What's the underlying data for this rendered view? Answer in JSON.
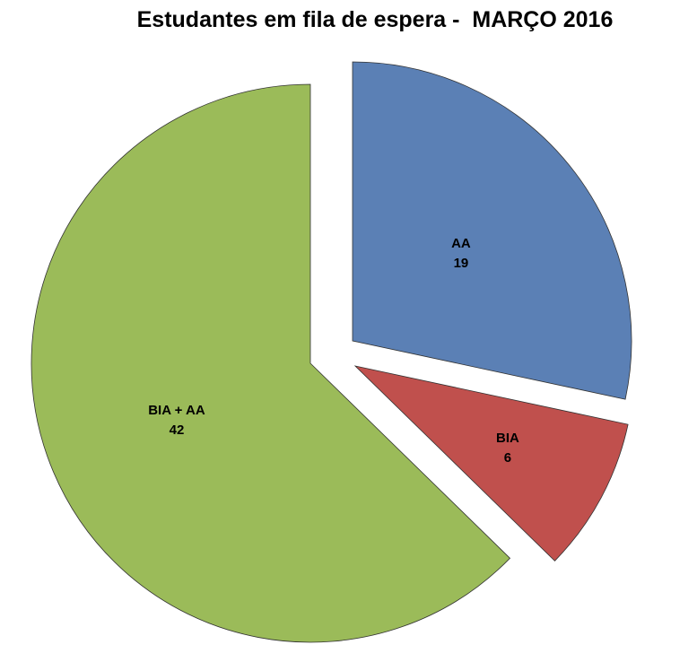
{
  "chart_data": {
    "type": "pie",
    "title": "Estudantes em fila de espera -  MARÇO 2016",
    "exploded": true,
    "start": "12 o'clock, clockwise",
    "slices": [
      {
        "label": "AA",
        "value": 19,
        "color": "#5b80b5"
      },
      {
        "label": "BIA",
        "value": 6,
        "color": "#c0504d"
      },
      {
        "label": "BIA + AA",
        "value": 42,
        "color": "#9bbb59"
      }
    ],
    "data_labels": "label and value, inside slice",
    "legend": "none"
  }
}
